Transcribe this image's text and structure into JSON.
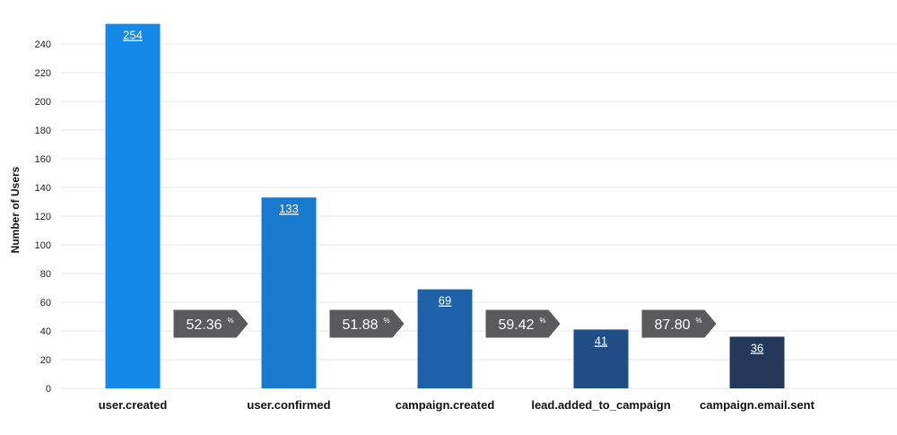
{
  "chart_data": {
    "type": "bar",
    "title": "",
    "xlabel": "",
    "ylabel": "Number of Users",
    "ylim": [
      0,
      250
    ],
    "yticks": [
      0,
      20,
      40,
      60,
      80,
      100,
      120,
      140,
      160,
      180,
      200,
      220,
      240
    ],
    "grid": true,
    "categories": [
      "user.created",
      "user.confirmed",
      "campaign.created",
      "lead.added_to_campaign",
      "campaign.email.sent"
    ],
    "values": [
      254,
      133,
      69,
      41,
      36
    ],
    "value_labels": [
      "254",
      "133",
      "69",
      "41",
      "36"
    ],
    "conversions": [
      {
        "value": "52.36",
        "unit": "%"
      },
      {
        "value": "51.88",
        "unit": "%"
      },
      {
        "value": "59.42",
        "unit": "%"
      },
      {
        "value": "87.80",
        "unit": "%"
      }
    ],
    "colors": {
      "bars": [
        "#1589e8",
        "#1979cd",
        "#1d62a8",
        "#1f4f86",
        "#24395a"
      ],
      "conversion_arrow": "#5a595b",
      "grid": "#e6e6e6"
    }
  }
}
